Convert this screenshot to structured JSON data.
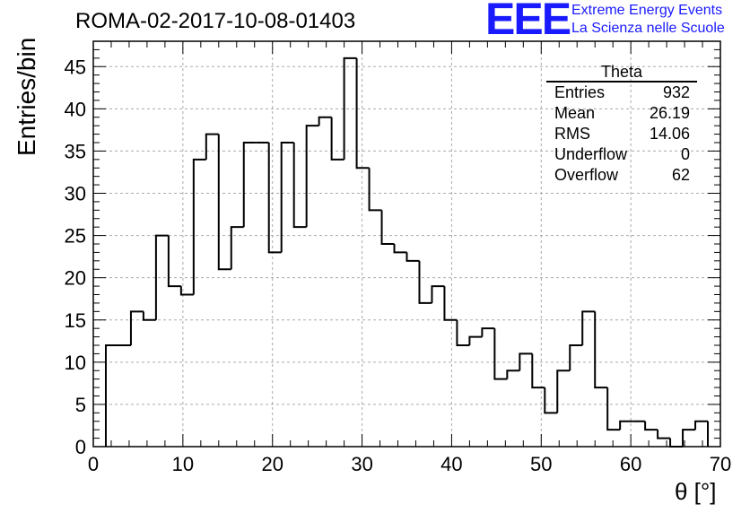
{
  "header": {
    "title": "ROMA-02-2017-10-08-01403",
    "logo_mark": "EEE",
    "logo_line1": "Extreme Energy Events",
    "logo_line2": "La Scienza nelle Scuole"
  },
  "stats_box": {
    "title": "Theta",
    "rows": [
      {
        "label": "Entries",
        "value": "932"
      },
      {
        "label": "Mean",
        "value": "26.19"
      },
      {
        "label": "RMS",
        "value": "14.06"
      },
      {
        "label": "Underflow",
        "value": "0"
      },
      {
        "label": "Overflow",
        "value": "62"
      }
    ]
  },
  "chart_data": {
    "type": "bar",
    "histogram": "step",
    "xlabel": "θ [°]",
    "ylabel": "Entries/bin",
    "xlim": [
      0,
      70
    ],
    "ylim": [
      0,
      48
    ],
    "bin_width": 1.4,
    "x_start": 1.4,
    "x": [
      1.4,
      2.8,
      4.2,
      5.6,
      7.0,
      8.4,
      9.8,
      11.2,
      12.6,
      14.0,
      15.4,
      16.8,
      18.2,
      19.6,
      21.0,
      22.4,
      23.8,
      25.2,
      26.6,
      28.0,
      29.4,
      30.8,
      32.2,
      33.6,
      35.0,
      36.4,
      37.8,
      39.2,
      40.6,
      42.0,
      43.4,
      44.8,
      46.2,
      47.6,
      49.0,
      50.4,
      51.8,
      53.2,
      54.6,
      56.0,
      57.4,
      58.8,
      60.2,
      61.6,
      63.0,
      64.4,
      65.8,
      67.2
    ],
    "values": [
      12,
      12,
      16,
      15,
      25,
      19,
      18,
      34,
      37,
      21,
      26,
      36,
      36,
      23,
      36,
      26,
      38,
      39,
      34,
      46,
      33,
      28,
      24,
      23,
      22,
      17,
      19,
      15,
      12,
      13,
      14,
      8,
      9,
      11,
      7,
      4,
      9,
      12,
      16,
      7,
      2,
      3,
      3,
      2,
      1,
      0,
      2,
      3
    ],
    "x_ticks": [
      0,
      10,
      20,
      30,
      40,
      50,
      60,
      70
    ],
    "y_ticks": [
      0,
      5,
      10,
      15,
      20,
      25,
      30,
      35,
      40,
      45
    ],
    "grid": true,
    "line_color": "#000000",
    "grid_color": "#aaaaaa"
  }
}
